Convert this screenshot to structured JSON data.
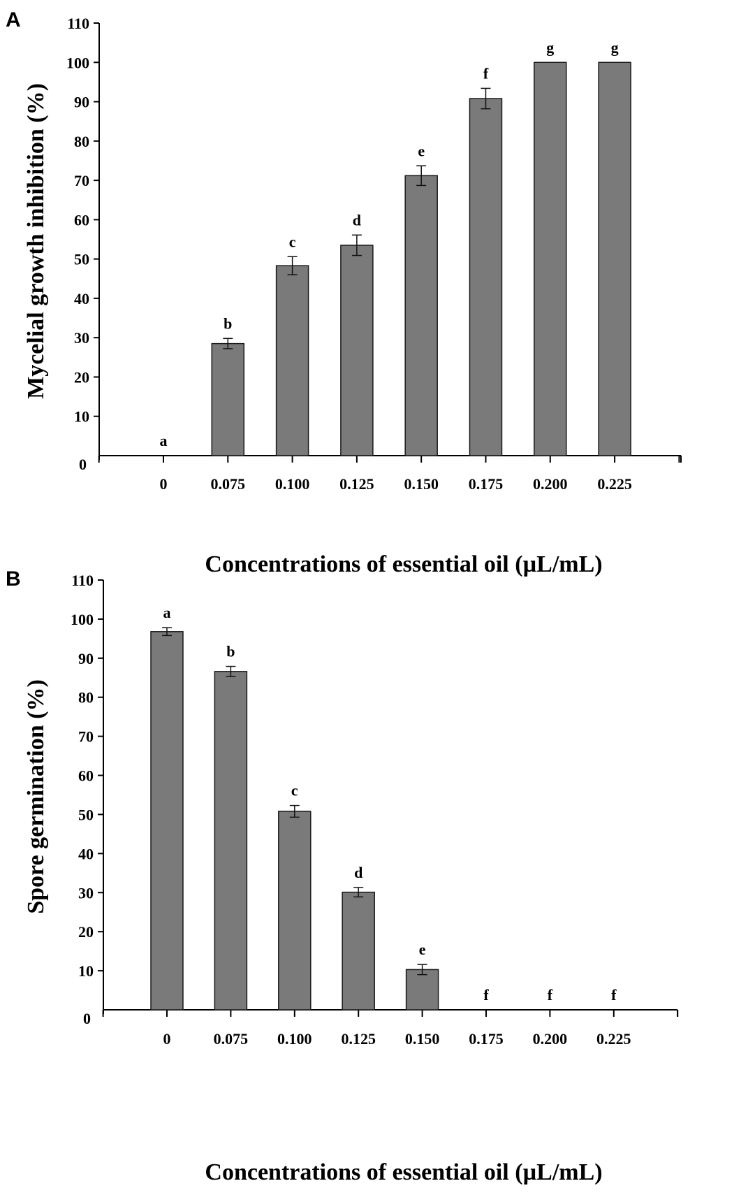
{
  "chart_data": [
    {
      "type": "bar",
      "panel_label": "A",
      "categories": [
        "0",
        "0.075",
        "0.100",
        "0.125",
        "0.150",
        "0.175",
        "0.200",
        "0.225"
      ],
      "values": [
        0,
        28.5,
        48.3,
        53.5,
        71.2,
        90.8,
        100,
        100
      ],
      "errors": [
        0,
        1.3,
        2.3,
        2.6,
        2.5,
        2.6,
        0,
        0
      ],
      "significance": [
        "a",
        "b",
        "c",
        "d",
        "e",
        "f",
        "g",
        "g"
      ],
      "xlabel": "Concentrations of essential oil (µL/mL)",
      "ylabel": "Mycelial growth inhibition (%)",
      "ylim": [
        0,
        110
      ],
      "yticks": [
        0,
        10,
        20,
        30,
        40,
        50,
        60,
        70,
        80,
        90,
        100,
        110
      ],
      "bar_color": "#7a7a7a"
    },
    {
      "type": "bar",
      "panel_label": "B",
      "categories": [
        "0",
        "0.075",
        "0.100",
        "0.125",
        "0.150",
        "0.175",
        "0.200",
        "0.225"
      ],
      "values": [
        96.8,
        86.6,
        50.8,
        30.1,
        10.3,
        0,
        0,
        0
      ],
      "errors": [
        1.0,
        1.3,
        1.5,
        1.2,
        1.3,
        0,
        0,
        0
      ],
      "significance": [
        "a",
        "b",
        "c",
        "d",
        "e",
        "f",
        "f",
        "f"
      ],
      "xlabel": "Concentrations of essential oil (µL/mL)",
      "ylabel": "Spore germination (%)",
      "ylim": [
        0,
        110
      ],
      "yticks": [
        0,
        10,
        20,
        30,
        40,
        50,
        60,
        70,
        80,
        90,
        100,
        110
      ],
      "bar_color": "#7a7a7a"
    }
  ]
}
